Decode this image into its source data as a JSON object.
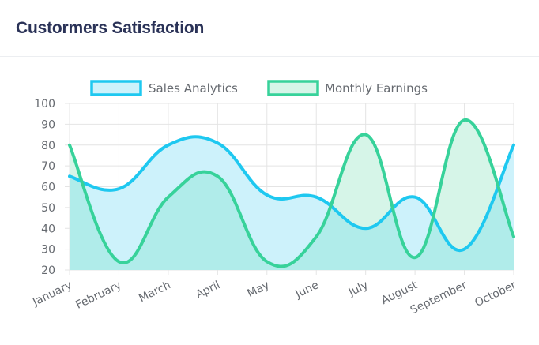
{
  "header": {
    "title": "Custormers Satisfaction"
  },
  "chart_data": {
    "type": "area",
    "title": "",
    "xlabel": "",
    "ylabel": "",
    "categories": [
      "January",
      "February",
      "March",
      "April",
      "May",
      "June",
      "July",
      "August",
      "September",
      "October"
    ],
    "ylim": [
      20,
      100
    ],
    "yticks": [
      20,
      30,
      40,
      50,
      60,
      70,
      80,
      90,
      100
    ],
    "grid": true,
    "legend": "top-center",
    "series": [
      {
        "name": "Sales Analytics",
        "values": [
          65,
          59,
          80,
          81,
          56,
          55,
          40,
          55,
          30,
          80
        ],
        "color": "#1ec8f0",
        "fill": "#cdf2fb"
      },
      {
        "name": "Monthly Earnings",
        "values": [
          80,
          24,
          55,
          65,
          24,
          36,
          85,
          26,
          92,
          36
        ],
        "color": "#37d29a",
        "fill": "#d6f5e8"
      }
    ],
    "overlap_fill": "#b0ecea"
  }
}
